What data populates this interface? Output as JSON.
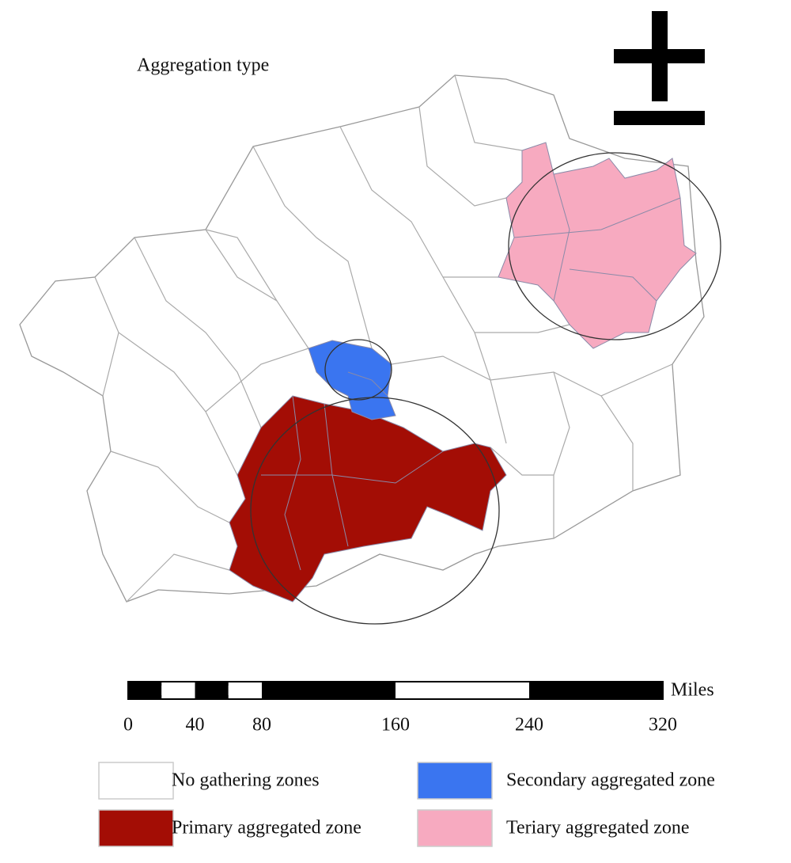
{
  "title": "Aggregation type",
  "scale_bar": {
    "unit": "Miles",
    "ticks": [
      0,
      40,
      80,
      160,
      240,
      320
    ]
  },
  "legend": [
    {
      "label": "No gathering zones",
      "color": "#ffffff"
    },
    {
      "label": "Secondary aggregated zone",
      "color": "#3a75f0"
    },
    {
      "label": "Primary aggregated zone",
      "color": "#a30d05"
    },
    {
      "label": "Teriary aggregated zone",
      "color": "#f7aac0"
    }
  ]
}
